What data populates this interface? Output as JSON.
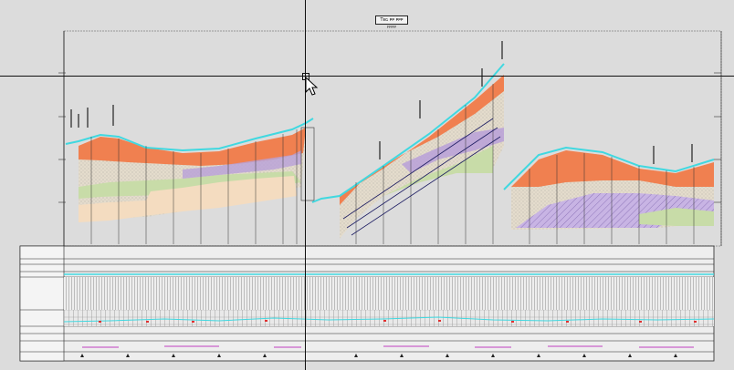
{
  "title": {
    "label": "Ƭᴇɢ ᴘᴘ ᴘᴘᴘ",
    "sub": "ᴘᴘᴘᴘᴘ"
  },
  "colors": {
    "background": "#dcdcdc",
    "surface": "#e8e8e8",
    "water": "#40d8e0",
    "topsoil": "#f08050",
    "sand": "#d8d0c0",
    "clay_green": "#c8dca8",
    "peat_purple": "#b8a0d8",
    "beige": "#f4dcc0",
    "grid_line": "#333333",
    "marker_red": "#e03030",
    "marker_magenta": "#c040c0"
  },
  "cursor": {
    "icon": "arrow-pointer-icon"
  }
}
